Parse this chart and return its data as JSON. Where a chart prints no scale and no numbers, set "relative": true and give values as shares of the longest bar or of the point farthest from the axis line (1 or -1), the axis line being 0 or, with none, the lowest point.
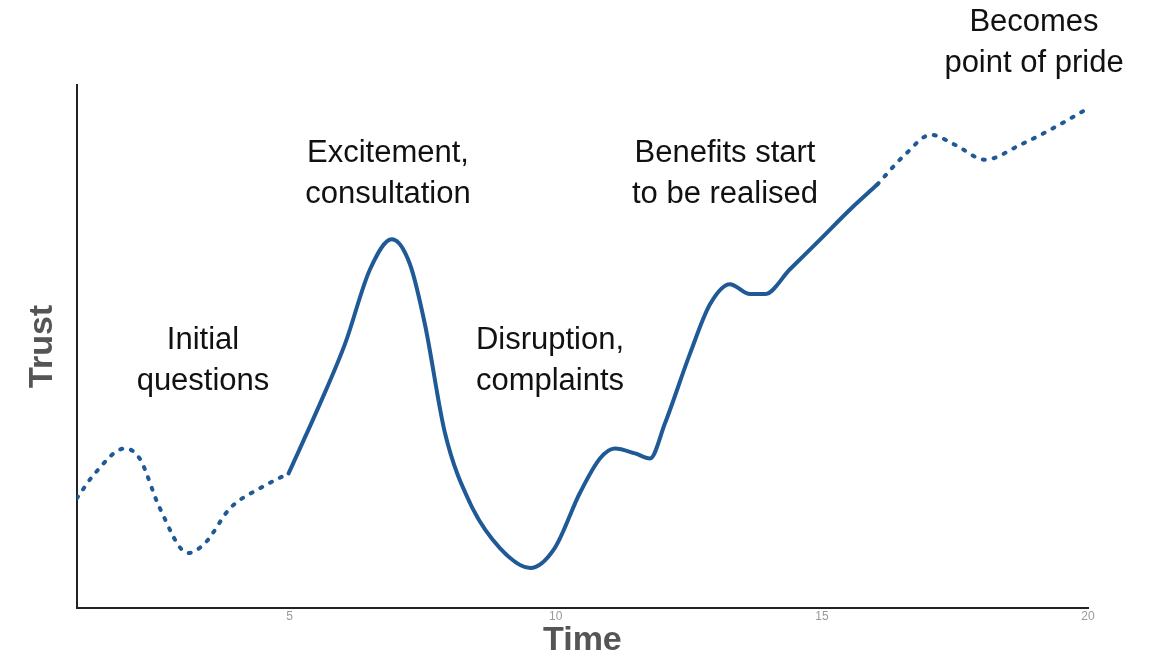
{
  "chart_data": {
    "type": "line",
    "xlabel": "Time",
    "ylabel": "Trust",
    "relative": true,
    "xlim": [
      1,
      20
    ],
    "xticks": [
      5,
      10,
      15,
      20
    ],
    "grid": false,
    "legend": false,
    "marker": "none",
    "annotations": [
      "Initial questions",
      "Excitement, consultation",
      "Disruption, complaints",
      "Benefits start to be realised",
      "Becomes point of pride"
    ],
    "series": [
      {
        "color": "#1f5a96",
        "line_style": "dotted",
        "x": [
          1.0,
          1.34,
          1.9,
          2.18,
          2.56,
          3.09,
          3.41,
          3.88,
          4.44,
          4.98
        ],
        "values": [
          0.22,
          0.27,
          0.32,
          0.3,
          0.2,
          0.11,
          0.13,
          0.2,
          0.24,
          0.27
        ]
      },
      {
        "color": "#1f5a96",
        "line_style": "solid",
        "x": [
          4.98,
          5.57,
          6.04,
          6.51,
          6.92,
          7.26,
          7.54,
          7.92,
          8.39,
          8.95,
          9.52,
          9.98,
          10.45,
          10.83,
          11.11,
          11.49,
          11.77,
          12.05,
          12.52,
          12.9,
          13.27,
          13.65,
          13.93,
          14.4,
          14.97,
          15.53,
          16.04
        ],
        "values": [
          0.27,
          0.41,
          0.53,
          0.68,
          0.74,
          0.69,
          0.57,
          0.35,
          0.21,
          0.12,
          0.08,
          0.12,
          0.23,
          0.3,
          0.32,
          0.31,
          0.3,
          0.37,
          0.51,
          0.61,
          0.65,
          0.63,
          0.63,
          0.68,
          0.74,
          0.8,
          0.85
        ]
      },
      {
        "color": "#1f5a96",
        "line_style": "dotted",
        "x": [
          16.04,
          16.56,
          17.05,
          17.5,
          18.07,
          18.73,
          19.29,
          19.95
        ],
        "values": [
          0.85,
          0.91,
          0.95,
          0.93,
          0.9,
          0.93,
          0.96,
          1.0
        ]
      }
    ]
  }
}
